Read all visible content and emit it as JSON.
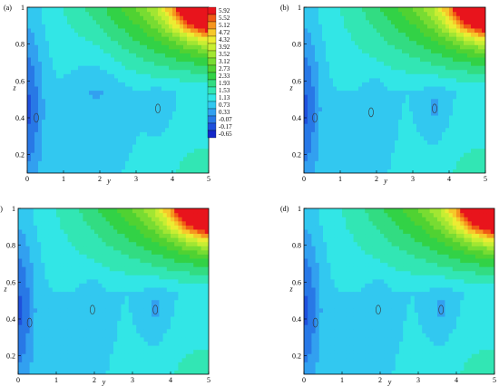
{
  "chart_data": [
    {
      "type": "heatmap",
      "panel_label": "(a)",
      "xlabel": "y",
      "ylabel": "z",
      "xlim": [
        0,
        5
      ],
      "ylim": [
        0.1,
        1
      ],
      "x_ticks": [
        "0",
        "1",
        "2",
        "3",
        "4",
        "5"
      ],
      "y_ticks": [
        "0.2",
        "0.4",
        "0.6",
        "0.8",
        "1"
      ],
      "legend_levels": [
        "5.92",
        "5.52",
        "5.12",
        "4.72",
        "4.32",
        "3.92",
        "3.52",
        "3.12",
        "2.73",
        "2.33",
        "1.93",
        "1.53",
        "1.13",
        "0.73",
        "0.33",
        "-0.07",
        "-0.17",
        "-0.65"
      ],
      "legend_colors": [
        "#e8141c",
        "#f05a14",
        "#f6961e",
        "#f6c82a",
        "#ecec32",
        "#c8ee32",
        "#a2e632",
        "#78dc32",
        "#50d232",
        "#32d246",
        "#32dc82",
        "#32e6b4",
        "#32e6e6",
        "#32c8f0",
        "#32a0f0",
        "#2878e6",
        "#1e50dc",
        "#1428c8"
      ],
      "vortex_centers": [
        {
          "y": 0.25,
          "z": 0.4
        },
        {
          "y": 3.6,
          "z": 0.45
        }
      ]
    },
    {
      "type": "heatmap",
      "panel_label": "(b)",
      "xlabel": "y",
      "ylabel": "z",
      "xlim": [
        0,
        5
      ],
      "ylim": [
        0.1,
        1
      ],
      "x_ticks": [
        "0",
        "1",
        "2",
        "3",
        "4",
        "5"
      ],
      "y_ticks": [
        "0.2",
        "0.4",
        "0.6",
        "0.8",
        "1"
      ],
      "vortex_centers": [
        {
          "y": 0.3,
          "z": 0.4
        },
        {
          "y": 1.85,
          "z": 0.43
        },
        {
          "y": 3.6,
          "z": 0.45
        }
      ]
    },
    {
      "type": "heatmap",
      "panel_label": "(c)",
      "xlabel": "y",
      "ylabel": "z",
      "xlim": [
        0,
        5
      ],
      "ylim": [
        0.1,
        1
      ],
      "x_ticks": [
        "0",
        "1",
        "2",
        "3",
        "4",
        "5"
      ],
      "y_ticks": [
        "0.2",
        "0.4",
        "0.6",
        "0.8",
        "1"
      ],
      "vortex_centers": [
        {
          "y": 0.3,
          "z": 0.38
        },
        {
          "y": 1.95,
          "z": 0.45
        },
        {
          "y": 3.6,
          "z": 0.45
        }
      ]
    },
    {
      "type": "heatmap",
      "panel_label": "(d)",
      "xlabel": "y",
      "ylabel": "z",
      "xlim": [
        0,
        5
      ],
      "ylim": [
        0.1,
        1
      ],
      "x_ticks": [
        "0",
        "1",
        "2",
        "3",
        "4",
        "5"
      ],
      "y_ticks": [
        "0.2",
        "0.4",
        "0.6",
        "0.8",
        "1"
      ],
      "vortex_centers": [
        {
          "y": 0.3,
          "z": 0.38
        },
        {
          "y": 1.95,
          "z": 0.45
        },
        {
          "y": 3.6,
          "z": 0.45
        }
      ]
    }
  ]
}
